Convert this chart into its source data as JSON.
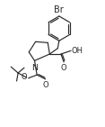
{
  "background": "#ffffff",
  "line_color": "#2a2a2a",
  "line_width": 0.85,
  "font_size": 6.0,
  "font_color": "#2a2a2a",
  "figsize": [
    1.17,
    1.41
  ],
  "dpi": 100,
  "xlim": [
    0,
    11
  ],
  "ylim": [
    0,
    13
  ]
}
